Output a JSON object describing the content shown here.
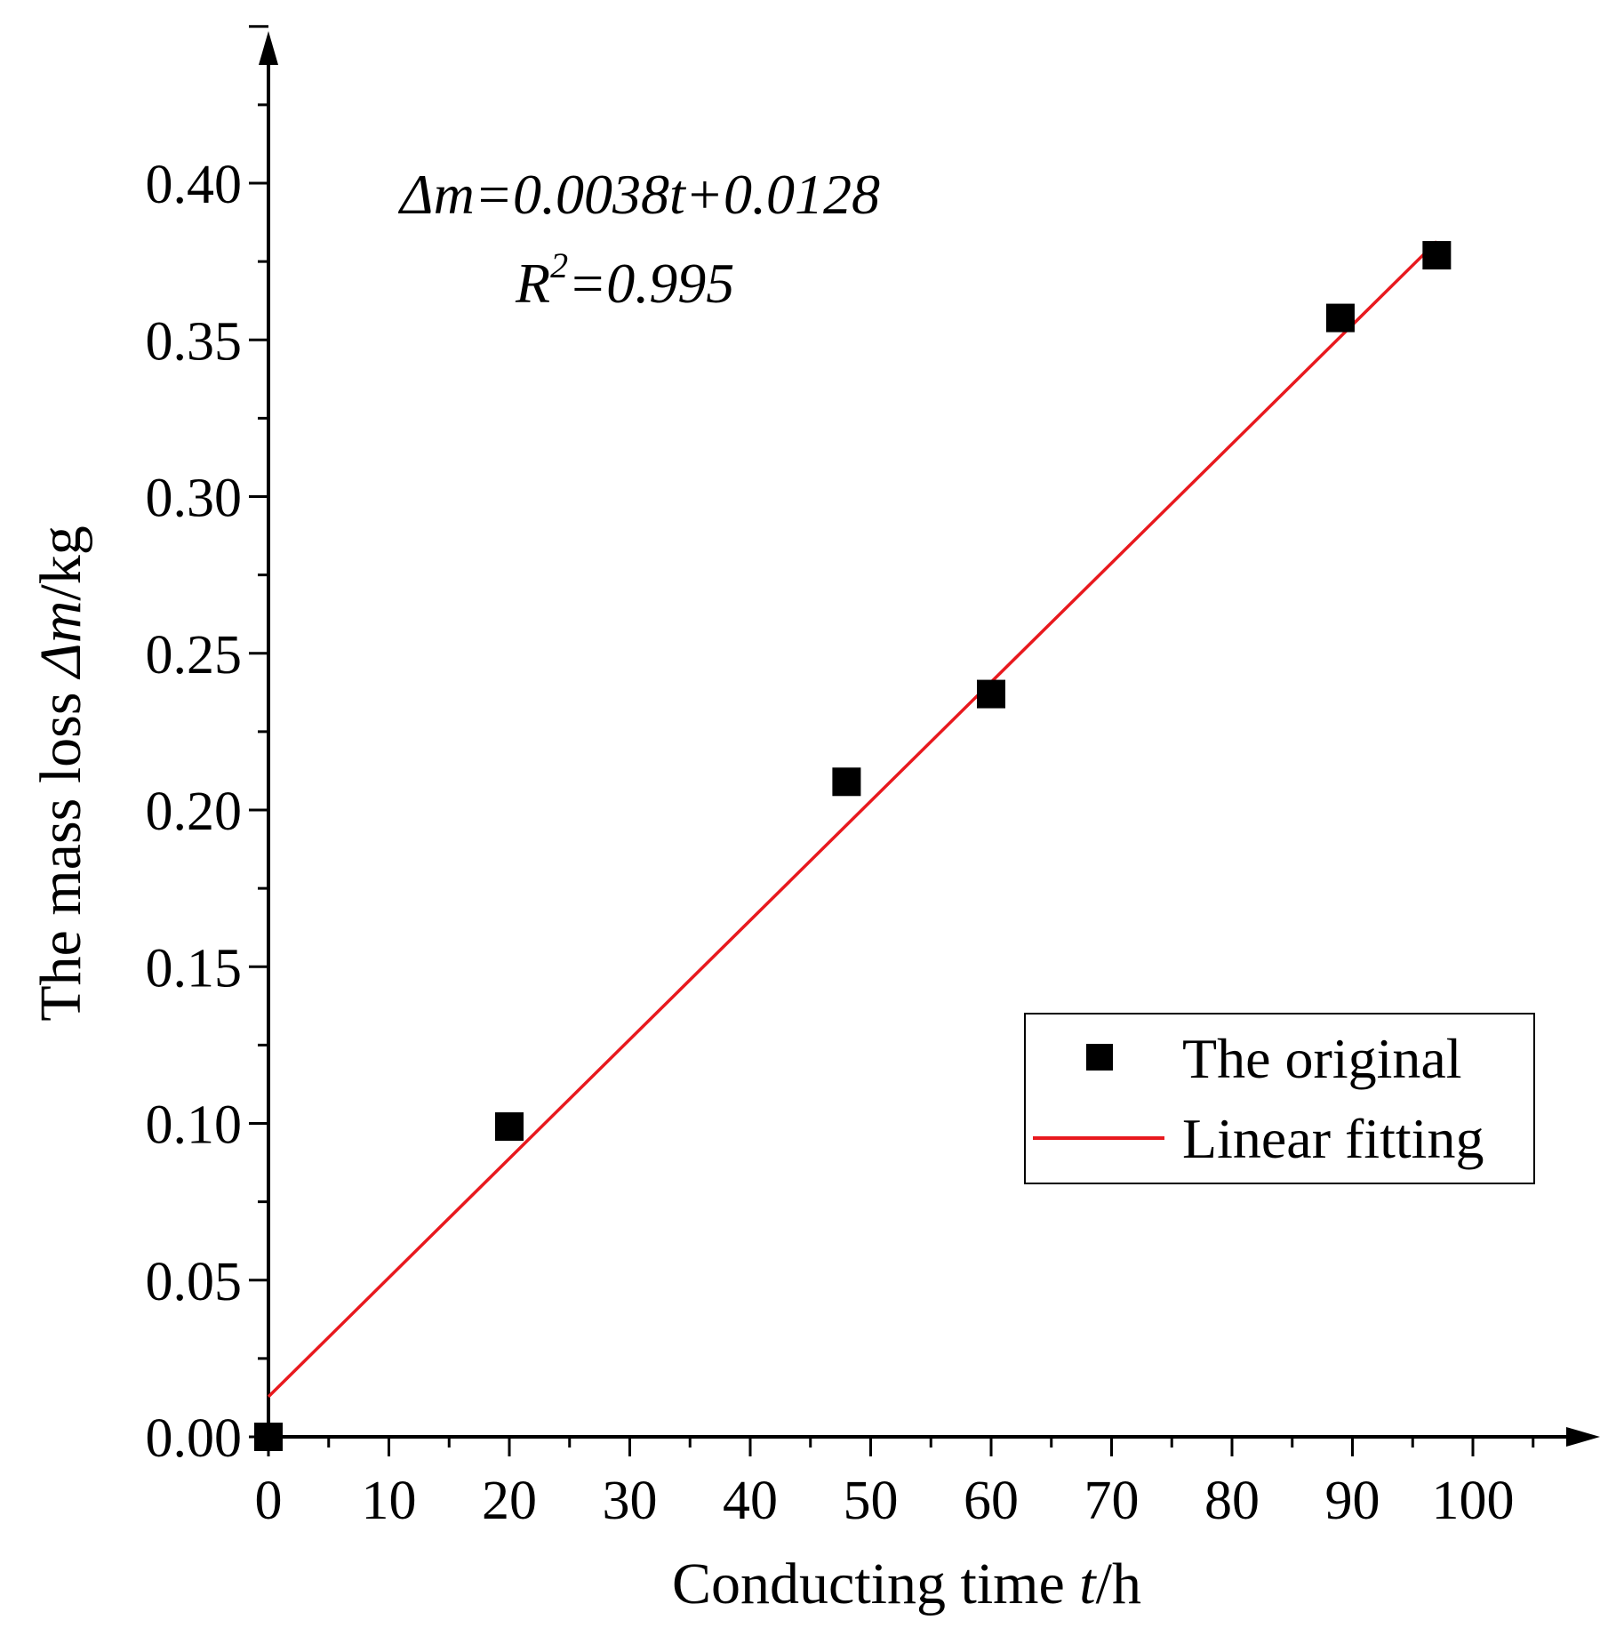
{
  "chart_data": {
    "type": "scatter",
    "title": "",
    "xlabel": {
      "prefix": "Conducting time ",
      "var": "t",
      "suffix": "/h"
    },
    "ylabel": {
      "prefix": "The mass loss ",
      "var": "Δm",
      "suffix": "/kg"
    },
    "xlim": [
      0,
      108
    ],
    "ylim": [
      0,
      0.45
    ],
    "x_ticks": [
      0,
      10,
      20,
      30,
      40,
      50,
      60,
      70,
      80,
      90,
      100
    ],
    "x_tick_labels": [
      "0",
      "10",
      "20",
      "30",
      "40",
      "50",
      "60",
      "70",
      "80",
      "90",
      "100"
    ],
    "y_ticks": [
      0.0,
      0.05,
      0.1,
      0.15,
      0.2,
      0.25,
      0.3,
      0.35,
      0.4
    ],
    "y_tick_labels": [
      "0.00",
      "0.05",
      "0.10",
      "0.15",
      "0.20",
      "0.25",
      "0.30",
      "0.35",
      "0.40"
    ],
    "series": [
      {
        "name": "The original",
        "kind": "scatter",
        "color": "#000000",
        "x": [
          0,
          20,
          48,
          60,
          89,
          97
        ],
        "y": [
          0.0,
          0.099,
          0.209,
          0.237,
          0.357,
          0.377
        ]
      },
      {
        "name": "Linear fitting",
        "kind": "line",
        "color": "#e8191e",
        "slope": 0.0038,
        "intercept": 0.0128,
        "x_range": [
          0,
          97
        ]
      }
    ],
    "annotation": {
      "equation": "Δm=0.0038t+0.0128",
      "r2_base": "R",
      "r2_sup": "2",
      "r2_value": "=0.995"
    },
    "legend": {
      "placement": "lower-right",
      "entries": [
        "The original",
        "Linear fitting"
      ]
    },
    "grid": false
  }
}
